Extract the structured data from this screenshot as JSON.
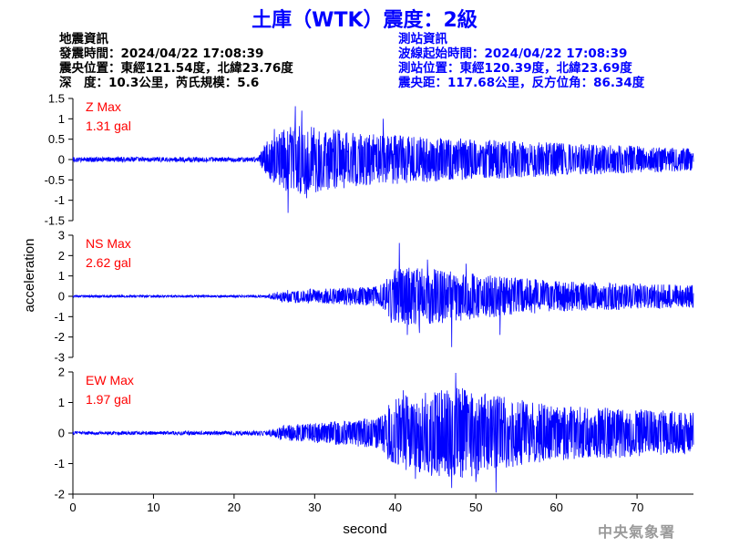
{
  "title": "土庫（WTK）震度：2級",
  "event_info": {
    "heading": "地震資訊",
    "origin_time": "發震時間：2024/04/22 17:08:39",
    "epicenter": "震央位置：東經121.54度，北緯23.76度",
    "depth_magnitude": "深　度：10.3公里，芮氏規模：5.6"
  },
  "station_info": {
    "heading": "測站資訊",
    "wave_start": "波線起始時間：2024/04/22 17:08:39",
    "station_location": "測站位置：東經120.39度，北緯23.69度",
    "distance_azimuth": "震央距：117.68公里，反方位角：86.34度"
  },
  "footer": "中央氣象署",
  "colors": {
    "trace": "#0000ff",
    "max_label": "#ff0000",
    "title": "#0000ff",
    "station_info": "#0000ff",
    "footer": "#9a9a9a"
  },
  "chart_data": {
    "type": "line",
    "xlabel": "second",
    "ylabel": "acceleration",
    "xlim": [
      0,
      77
    ],
    "xticks": [
      0,
      10,
      20,
      30,
      40,
      50,
      60,
      70
    ],
    "panels": [
      {
        "name": "Z",
        "max_label": "Z Max",
        "max_value": "1.31 gal",
        "ylim": [
          -1.5,
          1.5
        ],
        "yticks": [
          -1.5,
          -1,
          -0.5,
          0,
          0.5,
          1,
          1.5
        ],
        "ytick_labels": [
          "-1.5",
          "-1",
          "-0.5",
          "0",
          "0.5",
          "1",
          "1.5"
        ],
        "envelope": [
          [
            0,
            0.06
          ],
          [
            23,
            0.06
          ],
          [
            24,
            0.45
          ],
          [
            26,
            0.75
          ],
          [
            28,
            0.9
          ],
          [
            32,
            0.75
          ],
          [
            40,
            0.6
          ],
          [
            55,
            0.45
          ],
          [
            77,
            0.28
          ]
        ],
        "peaks": [
          [
            25,
            0.75
          ],
          [
            26.7,
            -1.31
          ],
          [
            27.6,
            1.31
          ],
          [
            29,
            -0.95
          ],
          [
            38.5,
            1.0
          ],
          [
            28.4,
            1.2
          ]
        ]
      },
      {
        "name": "NS",
        "max_label": "NS Max",
        "max_value": "2.62 gal",
        "ylim": [
          -3,
          3
        ],
        "yticks": [
          -3,
          -2,
          -1,
          0,
          1,
          2,
          3
        ],
        "ytick_labels": [
          "-3",
          "-2",
          "-1",
          "0",
          "1",
          "2",
          "3"
        ],
        "envelope": [
          [
            0,
            0.05
          ],
          [
            24,
            0.06
          ],
          [
            26,
            0.3
          ],
          [
            38,
            0.5
          ],
          [
            40,
            1.4
          ],
          [
            44,
            1.4
          ],
          [
            50,
            1.1
          ],
          [
            60,
            0.75
          ],
          [
            77,
            0.55
          ]
        ],
        "peaks": [
          [
            40.5,
            2.62
          ],
          [
            47,
            -2.5
          ],
          [
            41.5,
            -1.9
          ],
          [
            44,
            1.8
          ],
          [
            53,
            -1.9
          ],
          [
            48.8,
            1.6
          ],
          [
            39.5,
            -1.3
          ],
          [
            43,
            -1.8
          ]
        ]
      },
      {
        "name": "EW",
        "max_label": "EW Max",
        "max_value": "1.97 gal",
        "ylim": [
          -2,
          2
        ],
        "yticks": [
          -2,
          -1,
          0,
          1,
          2
        ],
        "ytick_labels": [
          "-2",
          "-1",
          "0",
          "1",
          "2"
        ],
        "envelope": [
          [
            0,
            0.05
          ],
          [
            24,
            0.08
          ],
          [
            26,
            0.25
          ],
          [
            38,
            0.5
          ],
          [
            40,
            1.2
          ],
          [
            48,
            1.5
          ],
          [
            53,
            1.2
          ],
          [
            60,
            0.9
          ],
          [
            77,
            0.7
          ]
        ],
        "peaks": [
          [
            47.5,
            1.97
          ],
          [
            47,
            -1.8
          ],
          [
            52.5,
            -1.95
          ],
          [
            41,
            1.4
          ],
          [
            44.5,
            -1.4
          ],
          [
            50,
            -1.6
          ],
          [
            45,
            1.25
          ],
          [
            42.5,
            -1.5
          ]
        ]
      }
    ]
  }
}
